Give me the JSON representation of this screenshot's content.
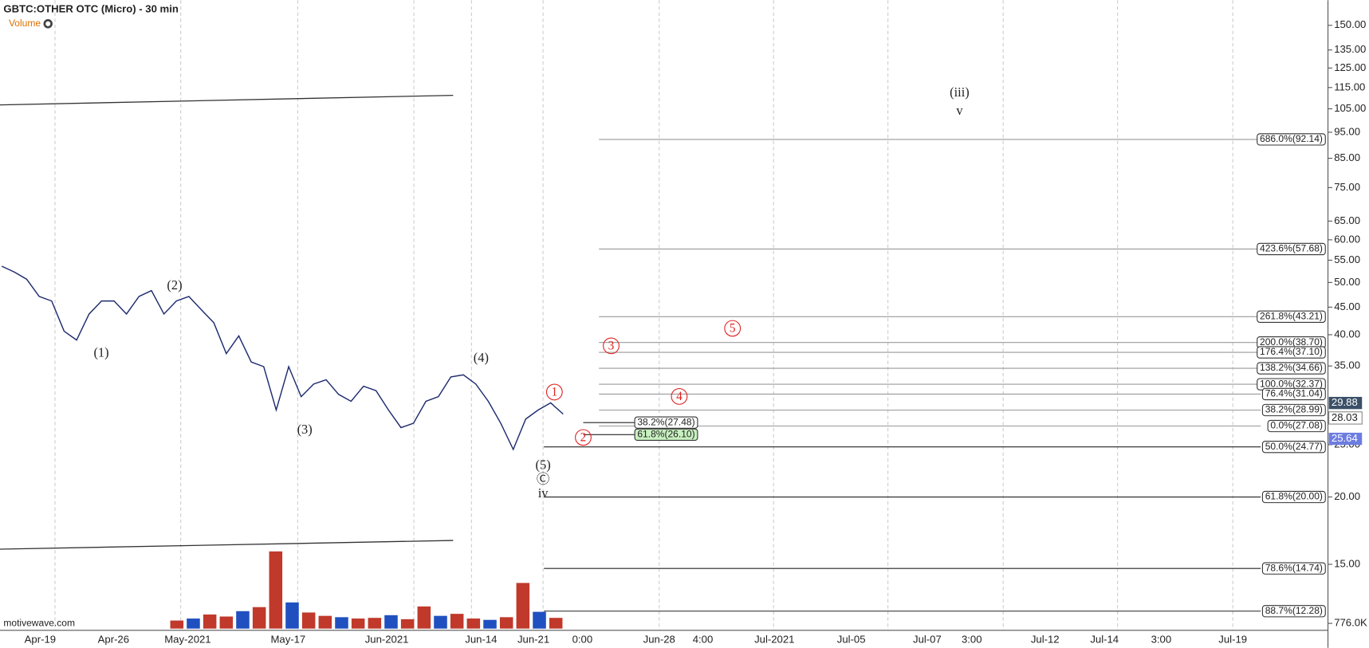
{
  "header": {
    "title": "GBTC:OTHER OTC (Micro) - 30 min",
    "volume_label": "Volume",
    "watermark": "motivewave.com"
  },
  "chart_data": {
    "type": "line",
    "log_scale": true,
    "color": "#1d2a6e",
    "ylim": [
      10.5,
      167
    ],
    "yticks": [
      {
        "value": 150,
        "label": "150.00"
      },
      {
        "value": 135,
        "label": "135.00"
      },
      {
        "value": 125,
        "label": "125.00"
      },
      {
        "value": 115,
        "label": "115.00"
      },
      {
        "value": 105,
        "label": "105.00"
      },
      {
        "value": 95,
        "label": "95.00"
      },
      {
        "value": 85,
        "label": "85.00"
      },
      {
        "value": 75,
        "label": "75.00"
      },
      {
        "value": 65,
        "label": "65.00"
      },
      {
        "value": 60,
        "label": "60.00"
      },
      {
        "value": 55,
        "label": "55.00"
      },
      {
        "value": 50,
        "label": "50.00"
      },
      {
        "value": 45,
        "label": "45.00"
      },
      {
        "value": 40,
        "label": "40.00"
      },
      {
        "value": 35,
        "label": "35.00"
      },
      {
        "value": 25,
        "label": "25.00"
      },
      {
        "value": 20,
        "label": "20.00"
      },
      {
        "value": 15,
        "label": "15.00"
      }
    ],
    "x_axis_labels": [
      "Apr-19",
      "Apr-26",
      "May-2021",
      "May-17",
      "Jun-2021",
      "Jun-14",
      "Jun-21",
      "0:00",
      "Jun-28",
      "4:00",
      "Jul-2021",
      "Jul-05",
      "Jul-07",
      "3:00",
      "Jul-12",
      "Jul-14",
      "3:00",
      "Jul-19"
    ],
    "values": [
      53.6,
      52.3,
      50.7,
      47.1,
      46.2,
      40.6,
      39.1,
      43.7,
      46.2,
      46.2,
      43.7,
      47.1,
      48.3,
      43.7,
      46.2,
      47.1,
      44.5,
      42.1,
      36.9,
      39.8,
      35.6,
      34.9,
      29.0,
      34.9,
      30.7,
      32.4,
      33.0,
      31.0,
      30.1,
      32.1,
      31.5,
      29.0,
      26.9,
      27.4,
      30.1,
      30.7,
      33.4,
      33.7,
      32.4,
      30.1,
      27.4,
      24.5,
      27.9,
      29.0,
      29.9,
      28.5
    ],
    "volume": {
      "color": "#c0392b",
      "ylim": [
        0,
        13000000
      ],
      "tick": {
        "value": 776000,
        "label": "776.0K"
      },
      "values": [
        1200000,
        1500000,
        2100000,
        1800000,
        2600000,
        3200000,
        11500000,
        3900000,
        2400000,
        1900000,
        1700000,
        1500000,
        1600000,
        2000000,
        1400000,
        3300000,
        1900000,
        2200000,
        1500000,
        1300000,
        1700000,
        6800000,
        2500000,
        1600000
      ]
    },
    "levels": [
      {
        "value": 92.14,
        "label": "686.0%(92.14)"
      },
      {
        "value": 57.68,
        "label": "423.6%(57.68)"
      },
      {
        "value": 43.21,
        "label": "261.8%(43.21)"
      },
      {
        "value": 38.7,
        "label": "200.0%(38.70)"
      },
      {
        "value": 37.1,
        "label": "176.4%(37.10)"
      },
      {
        "value": 34.66,
        "label": "138.2%(34.66)"
      },
      {
        "value": 32.37,
        "label": "100.0%(32.37)"
      },
      {
        "value": 31.04,
        "label": "76.4%(31.04)"
      },
      {
        "value": 28.99,
        "label": "38.2%(28.99)"
      },
      {
        "value": 27.08,
        "label": "0.0%(27.08)"
      }
    ],
    "retracement_levels": [
      {
        "value": 24.77,
        "label": "50.0%(24.77)"
      },
      {
        "value": 20.0,
        "label": "61.8%(20.00)"
      },
      {
        "value": 14.74,
        "label": "78.6%(14.74)"
      },
      {
        "value": 12.28,
        "label": "88.7%(12.28)"
      }
    ],
    "minor_levels": [
      {
        "value": 27.48,
        "label": "38.2%(27.48)"
      },
      {
        "value": 26.1,
        "label": "61.8%(26.10)"
      }
    ],
    "price_tags": [
      {
        "value": 29.88,
        "label": "29.88"
      },
      {
        "value": 28.03,
        "label": "28.03"
      },
      {
        "value": 25.64,
        "label": "25.64"
      }
    ],
    "wave_labels": [
      "(1)",
      "(2)",
      "(3)",
      "(4)",
      "(5)",
      "Ⓒ",
      "iv",
      "(iii)",
      "v"
    ],
    "circled_labels": [
      "1",
      "2",
      "3",
      "4",
      "5"
    ]
  }
}
